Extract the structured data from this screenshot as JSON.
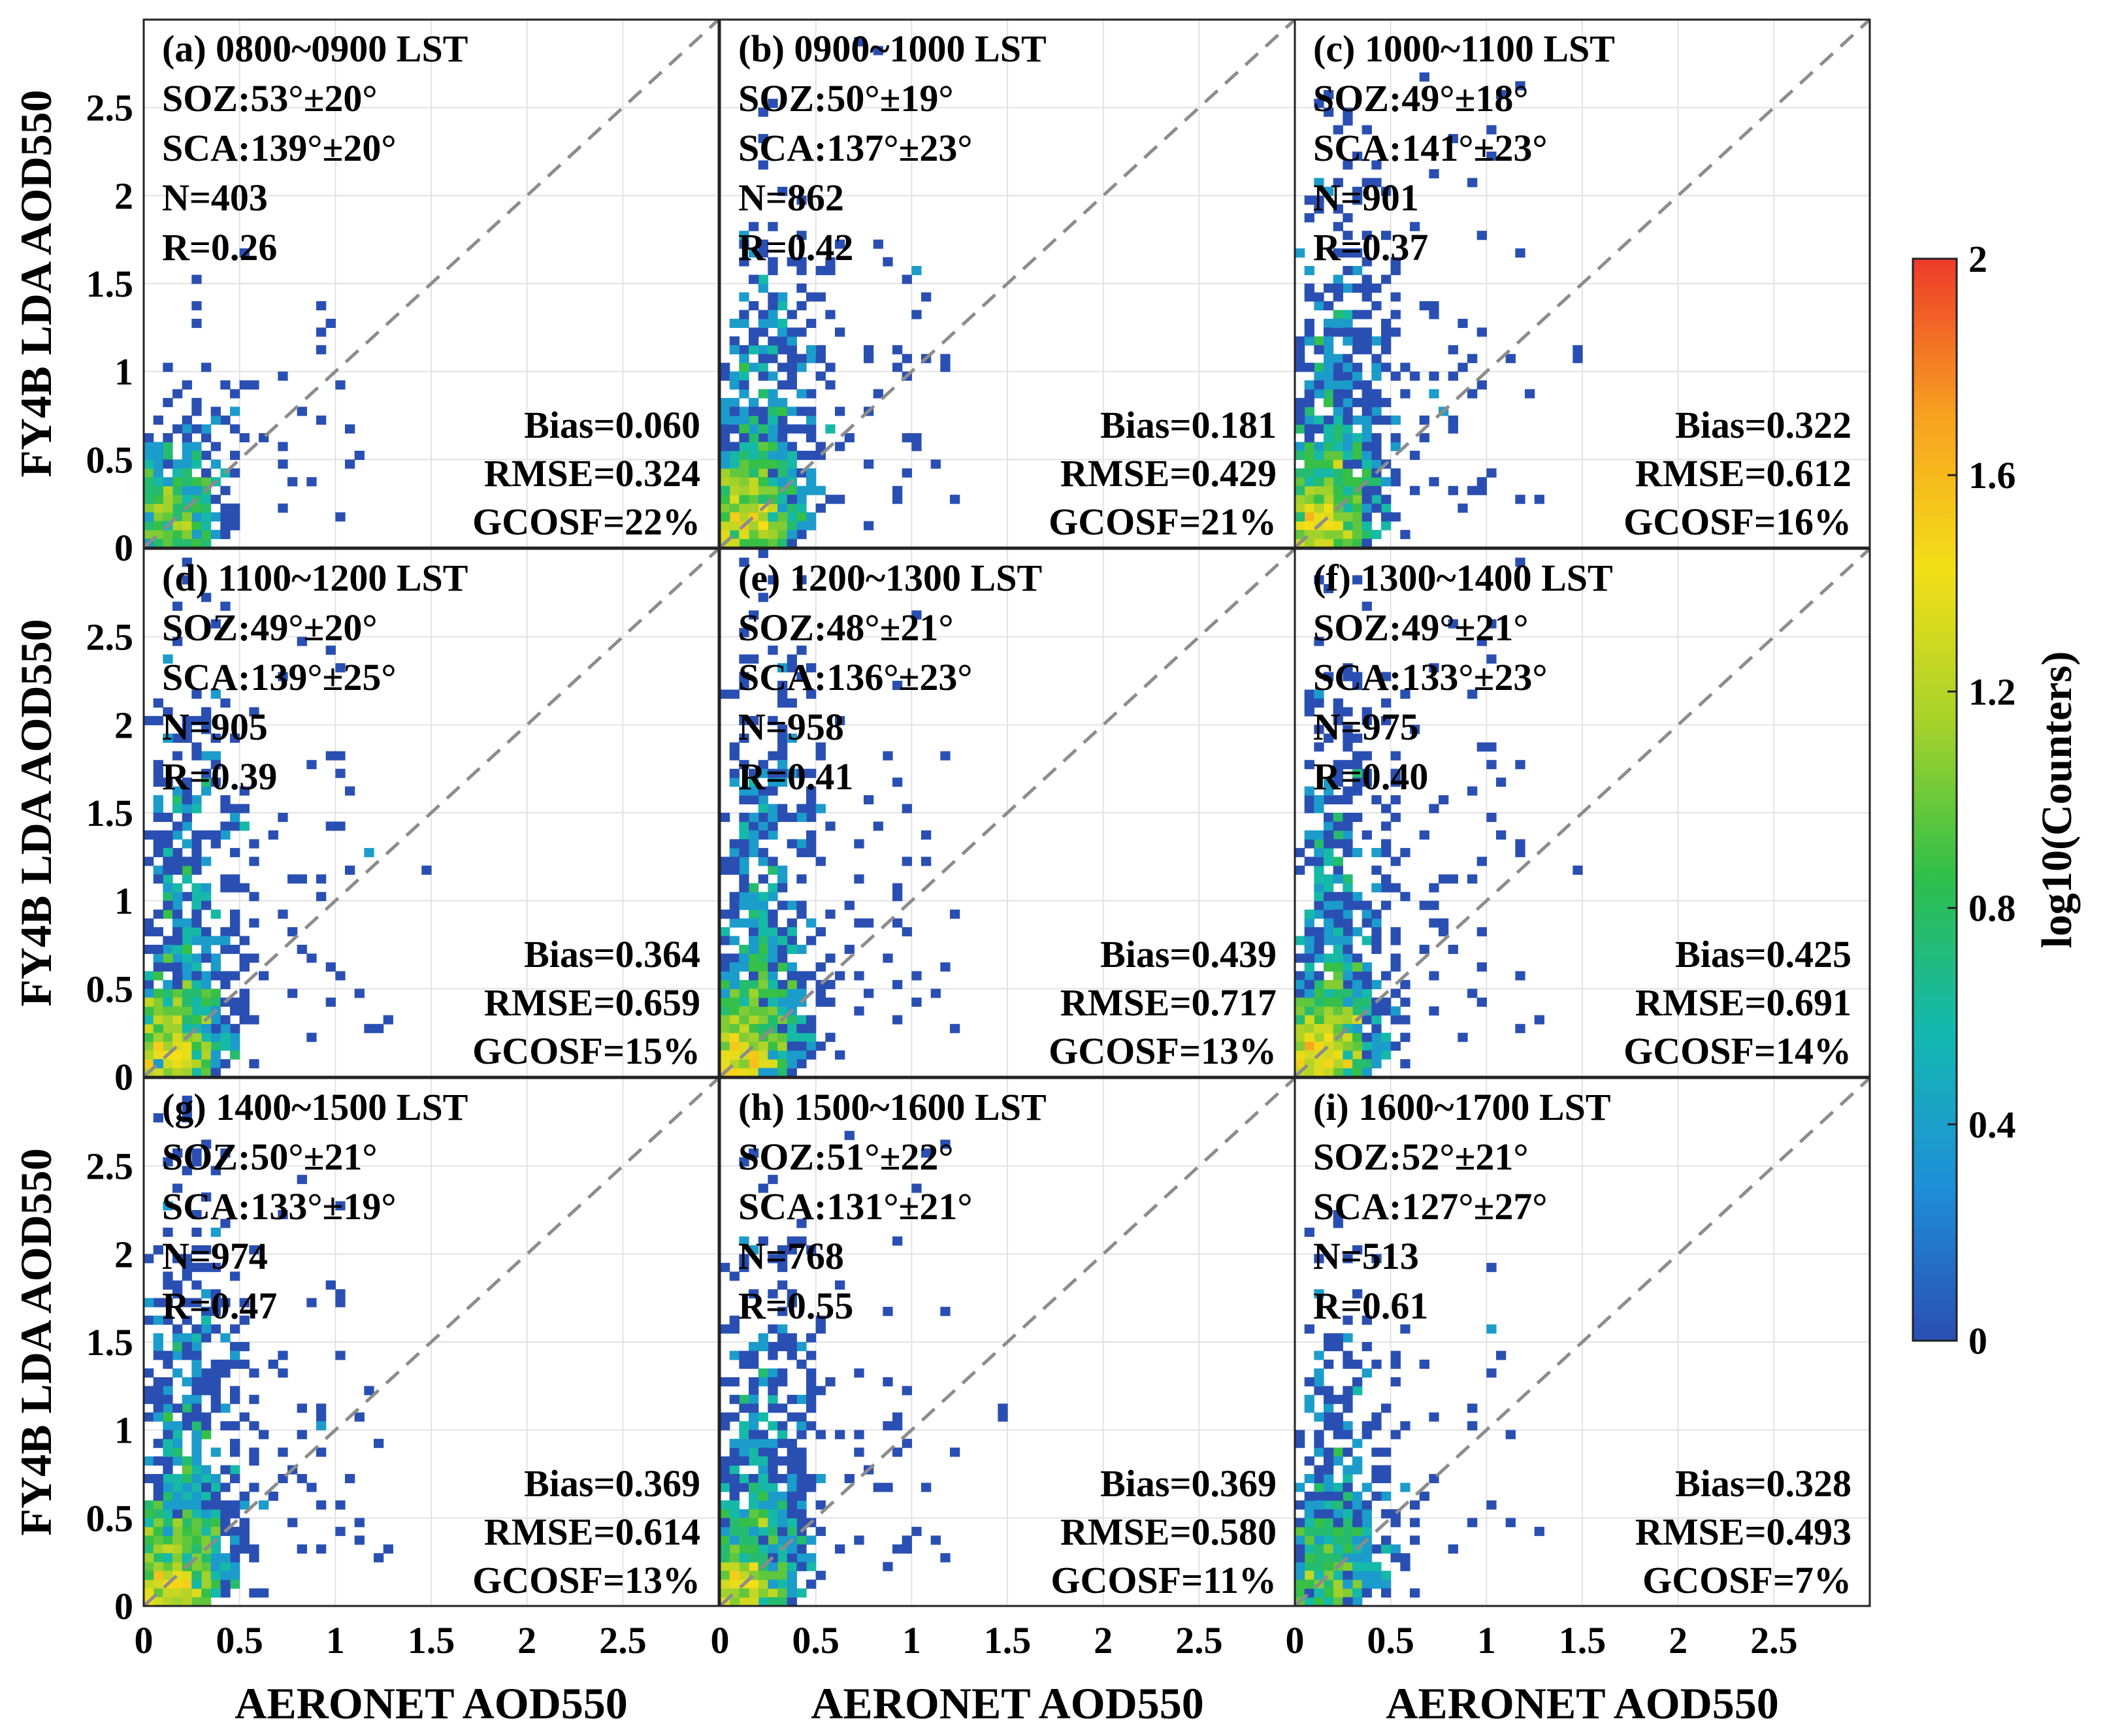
{
  "chart_data": {
    "type": "heatmap",
    "xlabel": "AERONET AOD550",
    "ylabel": "FY4B LDA AOD550",
    "xlim": [
      0,
      3.0
    ],
    "ylim": [
      0,
      3.0
    ],
    "x_ticks": [
      "0",
      "0.5",
      "1",
      "1.5",
      "2",
      "2.5"
    ],
    "y_ticks": [
      "0",
      "0.5",
      "1",
      "1.5",
      "2",
      "2.5"
    ],
    "tick_values": [
      0,
      0.5,
      1,
      1.5,
      2,
      2.5
    ],
    "grid": true,
    "reference_line": "1:1",
    "colorbar": {
      "label": "log10(Counters)",
      "range": [
        0,
        2
      ],
      "ticks": [
        "0",
        "0.4",
        "0.8",
        "1.2",
        "1.6",
        "2"
      ],
      "tick_values": [
        0,
        0.4,
        0.8,
        1.2,
        1.6,
        2
      ],
      "colors": [
        "#2a4fb3",
        "#1e8fd8",
        "#14b8b0",
        "#2fbf4a",
        "#a6d22a",
        "#f3df18",
        "#f7a020",
        "#ee3a2a"
      ]
    },
    "panels": [
      {
        "title": "(a) 0800~0900 LST",
        "soz": "SOZ:53°±20°",
        "sca": "SCA:139°±20°",
        "n": "N=403",
        "r": "R=0.26",
        "bias": "Bias=0.060",
        "rmse": "RMSE=0.324",
        "gcosf": "GCOSF=22%",
        "n_value": 403,
        "spread": 0.55,
        "tail": 0.25
      },
      {
        "title": "(b) 0900~1000 LST",
        "soz": "SOZ:50°±19°",
        "sca": "SCA:137°±23°",
        "n": "N=862",
        "r": "R=0.42",
        "bias": "Bias=0.181",
        "rmse": "RMSE=0.429",
        "gcosf": "GCOSF=21%",
        "n_value": 862,
        "spread": 1.0,
        "tail": 0.45
      },
      {
        "title": "(c) 1000~1100 LST",
        "soz": "SOZ:49°±18°",
        "sca": "SCA:141°±23°",
        "n": "N=901",
        "r": "R=0.37",
        "bias": "Bias=0.322",
        "rmse": "RMSE=0.612",
        "gcosf": "GCOSF=16%",
        "n_value": 901,
        "spread": 1.25,
        "tail": 0.5
      },
      {
        "title": "(d) 1100~1200 LST",
        "soz": "SOZ:49°±20°",
        "sca": "SCA:139°±25°",
        "n": "N=905",
        "r": "R=0.39",
        "bias": "Bias=0.364",
        "rmse": "RMSE=0.659",
        "gcosf": "GCOSF=15%",
        "n_value": 905,
        "spread": 1.35,
        "tail": 0.45
      },
      {
        "title": "(e) 1200~1300 LST",
        "soz": "SOZ:48°±21°",
        "sca": "SCA:136°±23°",
        "n": "N=958",
        "r": "R=0.41",
        "bias": "Bias=0.439",
        "rmse": "RMSE=0.717",
        "gcosf": "GCOSF=13%",
        "n_value": 958,
        "spread": 1.45,
        "tail": 0.45
      },
      {
        "title": "(f) 1300~1400 LST",
        "soz": "SOZ:49°±21°",
        "sca": "SCA:133°±23°",
        "n": "N=975",
        "r": "R=0.40",
        "bias": "Bias=0.425",
        "rmse": "RMSE=0.691",
        "gcosf": "GCOSF=14%",
        "n_value": 975,
        "spread": 1.4,
        "tail": 0.45
      },
      {
        "title": "(g) 1400~1500 LST",
        "soz": "SOZ:50°±21°",
        "sca": "SCA:133°±19°",
        "n": "N=974",
        "r": "R=0.47",
        "bias": "Bias=0.369",
        "rmse": "RMSE=0.614",
        "gcosf": "GCOSF=13%",
        "n_value": 974,
        "spread": 1.3,
        "tail": 0.5
      },
      {
        "title": "(h) 1500~1600 LST",
        "soz": "SOZ:51°±22°",
        "sca": "SCA:131°±21°",
        "n": "N=768",
        "r": "R=0.55",
        "bias": "Bias=0.369",
        "rmse": "RMSE=0.580",
        "gcosf": "GCOSF=11%",
        "n_value": 768,
        "spread": 1.25,
        "tail": 0.5
      },
      {
        "title": "(i) 1600~1700 LST",
        "soz": "SOZ:52°±21°",
        "sca": "SCA:127°±27°",
        "n": "N=513",
        "r": "R=0.61",
        "bias": "Bias=0.328",
        "rmse": "RMSE=0.493",
        "gcosf": "GCOSF=7%",
        "n_value": 513,
        "spread": 1.0,
        "tail": 0.55
      }
    ]
  }
}
